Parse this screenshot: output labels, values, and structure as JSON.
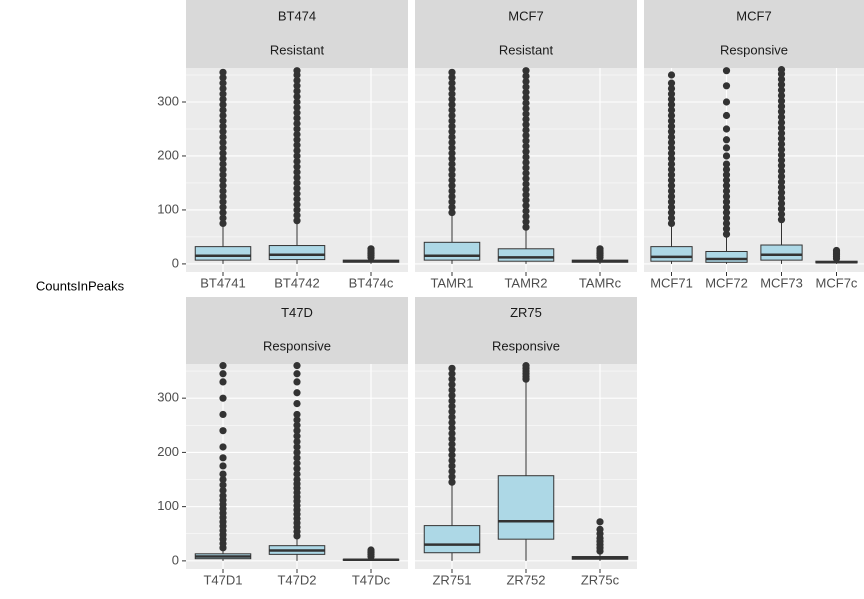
{
  "y_label": "CountsInPeaks",
  "chart_data": [
    {
      "type": "box",
      "title": "BT474",
      "subtitle": "Resistant",
      "categories": [
        "BT4741",
        "BT4742",
        "BT474c"
      ],
      "color": "#add8e6",
      "ylim": [
        -15,
        363
      ],
      "yticks": [
        0,
        100,
        200,
        300
      ],
      "boxes": [
        {
          "low": 0,
          "q1": 7,
          "median": 15,
          "q3": 32,
          "high": 72,
          "outliers": [
            75,
            85,
            95,
            105,
            115,
            125,
            135,
            145,
            155,
            165,
            175,
            185,
            195,
            205,
            215,
            225,
            235,
            245,
            255,
            265,
            275,
            285,
            295,
            305,
            315,
            325,
            335,
            345,
            355
          ]
        },
        {
          "low": 0,
          "q1": 8,
          "median": 17,
          "q3": 34,
          "high": 76,
          "outliers": [
            80,
            90,
            100,
            110,
            120,
            130,
            140,
            150,
            160,
            170,
            180,
            190,
            200,
            210,
            220,
            230,
            240,
            250,
            260,
            270,
            280,
            290,
            300,
            310,
            320,
            330,
            340,
            350,
            358
          ]
        },
        {
          "low": 0,
          "q1": 3,
          "median": 5,
          "q3": 7,
          "high": 10,
          "outliers": [
            12,
            16,
            20,
            24,
            28
          ]
        }
      ]
    },
    {
      "type": "box",
      "title": "MCF7",
      "subtitle": "Resistant",
      "categories": [
        "TAMR1",
        "TAMR2",
        "TAMRc"
      ],
      "color": "#add8e6",
      "ylim": [
        -15,
        363
      ],
      "yticks": [
        0,
        100,
        200,
        300
      ],
      "boxes": [
        {
          "low": 0,
          "q1": 7,
          "median": 15,
          "q3": 40,
          "high": 90,
          "outliers": [
            95,
            105,
            115,
            125,
            135,
            145,
            155,
            165,
            175,
            185,
            195,
            205,
            215,
            225,
            235,
            245,
            255,
            265,
            275,
            285,
            295,
            305,
            315,
            325,
            335,
            345,
            355
          ]
        },
        {
          "low": 0,
          "q1": 5,
          "median": 12,
          "q3": 28,
          "high": 65,
          "outliers": [
            68,
            78,
            88,
            98,
            108,
            118,
            128,
            138,
            148,
            158,
            168,
            178,
            188,
            198,
            208,
            218,
            228,
            238,
            248,
            258,
            268,
            278,
            288,
            298,
            308,
            318,
            328,
            338,
            348,
            358
          ]
        },
        {
          "low": 0,
          "q1": 3,
          "median": 5,
          "q3": 7,
          "high": 10,
          "outliers": [
            12,
            16,
            20,
            24,
            28
          ]
        }
      ]
    },
    {
      "type": "box",
      "title": "MCF7",
      "subtitle": "Responsive",
      "categories": [
        "MCF71",
        "MCF72",
        "MCF73",
        "MCF7c"
      ],
      "color": "#add8e6",
      "ylim": [
        -15,
        363
      ],
      "yticks": [
        0,
        100,
        200,
        300
      ],
      "boxes": [
        {
          "low": 0,
          "q1": 5,
          "median": 13,
          "q3": 32,
          "high": 72,
          "outliers": [
            75,
            85,
            95,
            105,
            115,
            125,
            135,
            145,
            155,
            165,
            175,
            185,
            195,
            205,
            215,
            225,
            235,
            245,
            255,
            265,
            275,
            285,
            295,
            305,
            315,
            325,
            335,
            350
          ]
        },
        {
          "low": 0,
          "q1": 3,
          "median": 9,
          "q3": 23,
          "high": 52,
          "outliers": [
            55,
            65,
            75,
            85,
            95,
            105,
            115,
            125,
            135,
            145,
            155,
            165,
            175,
            185,
            200,
            215,
            230,
            250,
            275,
            300,
            330,
            358
          ]
        },
        {
          "low": 0,
          "q1": 7,
          "median": 17,
          "q3": 35,
          "high": 78,
          "outliers": [
            82,
            92,
            102,
            112,
            122,
            132,
            142,
            152,
            162,
            172,
            182,
            192,
            202,
            212,
            222,
            232,
            242,
            252,
            262,
            272,
            282,
            292,
            302,
            312,
            322,
            332,
            342,
            352,
            360
          ]
        },
        {
          "low": 0,
          "q1": 2,
          "median": 3,
          "q3": 5,
          "high": 8,
          "outliers": [
            10,
            14,
            18,
            22,
            25
          ]
        }
      ]
    },
    {
      "type": "box",
      "title": "T47D",
      "subtitle": "Responsive",
      "categories": [
        "T47D1",
        "T47D2",
        "T47Dc"
      ],
      "color": "#add8e6",
      "ylim": [
        -15,
        363
      ],
      "yticks": [
        0,
        100,
        200,
        300
      ],
      "boxes": [
        {
          "low": 0,
          "q1": 4,
          "median": 8,
          "q3": 13,
          "high": 20,
          "outliers": [
            24,
            32,
            40,
            48,
            56,
            64,
            72,
            80,
            88,
            96,
            104,
            112,
            120,
            130,
            140,
            150,
            160,
            175,
            190,
            210,
            240,
            270,
            300,
            330,
            345,
            360
          ]
        },
        {
          "low": 0,
          "q1": 12,
          "median": 19,
          "q3": 28,
          "high": 42,
          "outliers": [
            46,
            54,
            62,
            70,
            78,
            86,
            94,
            102,
            110,
            118,
            126,
            134,
            142,
            150,
            160,
            170,
            180,
            190,
            200,
            210,
            220,
            230,
            240,
            250,
            260,
            270,
            290,
            310,
            330,
            345,
            360
          ]
        },
        {
          "low": 0,
          "q1": 1,
          "median": 2,
          "q3": 3,
          "high": 5,
          "outliers": [
            8,
            12,
            16,
            20
          ]
        }
      ]
    },
    {
      "type": "box",
      "title": "ZR75",
      "subtitle": "Responsive",
      "categories": [
        "ZR751",
        "ZR752",
        "ZR75c"
      ],
      "color": "#add8e6",
      "ylim": [
        -15,
        363
      ],
      "yticks": [
        0,
        100,
        200,
        300
      ],
      "boxes": [
        {
          "low": 0,
          "q1": 15,
          "median": 30,
          "q3": 65,
          "high": 140,
          "outliers": [
            145,
            155,
            165,
            175,
            185,
            195,
            205,
            215,
            225,
            235,
            245,
            255,
            265,
            275,
            285,
            295,
            305,
            315,
            325,
            335,
            345,
            355
          ]
        },
        {
          "low": 0,
          "q1": 40,
          "median": 73,
          "q3": 157,
          "high": 330,
          "outliers": [
            335,
            340,
            345,
            350,
            355,
            360
          ]
        },
        {
          "low": 0,
          "q1": 3,
          "median": 5,
          "q3": 8,
          "high": 14,
          "outliers": [
            18,
            24,
            30,
            36,
            42,
            50,
            58,
            72
          ]
        }
      ]
    }
  ]
}
